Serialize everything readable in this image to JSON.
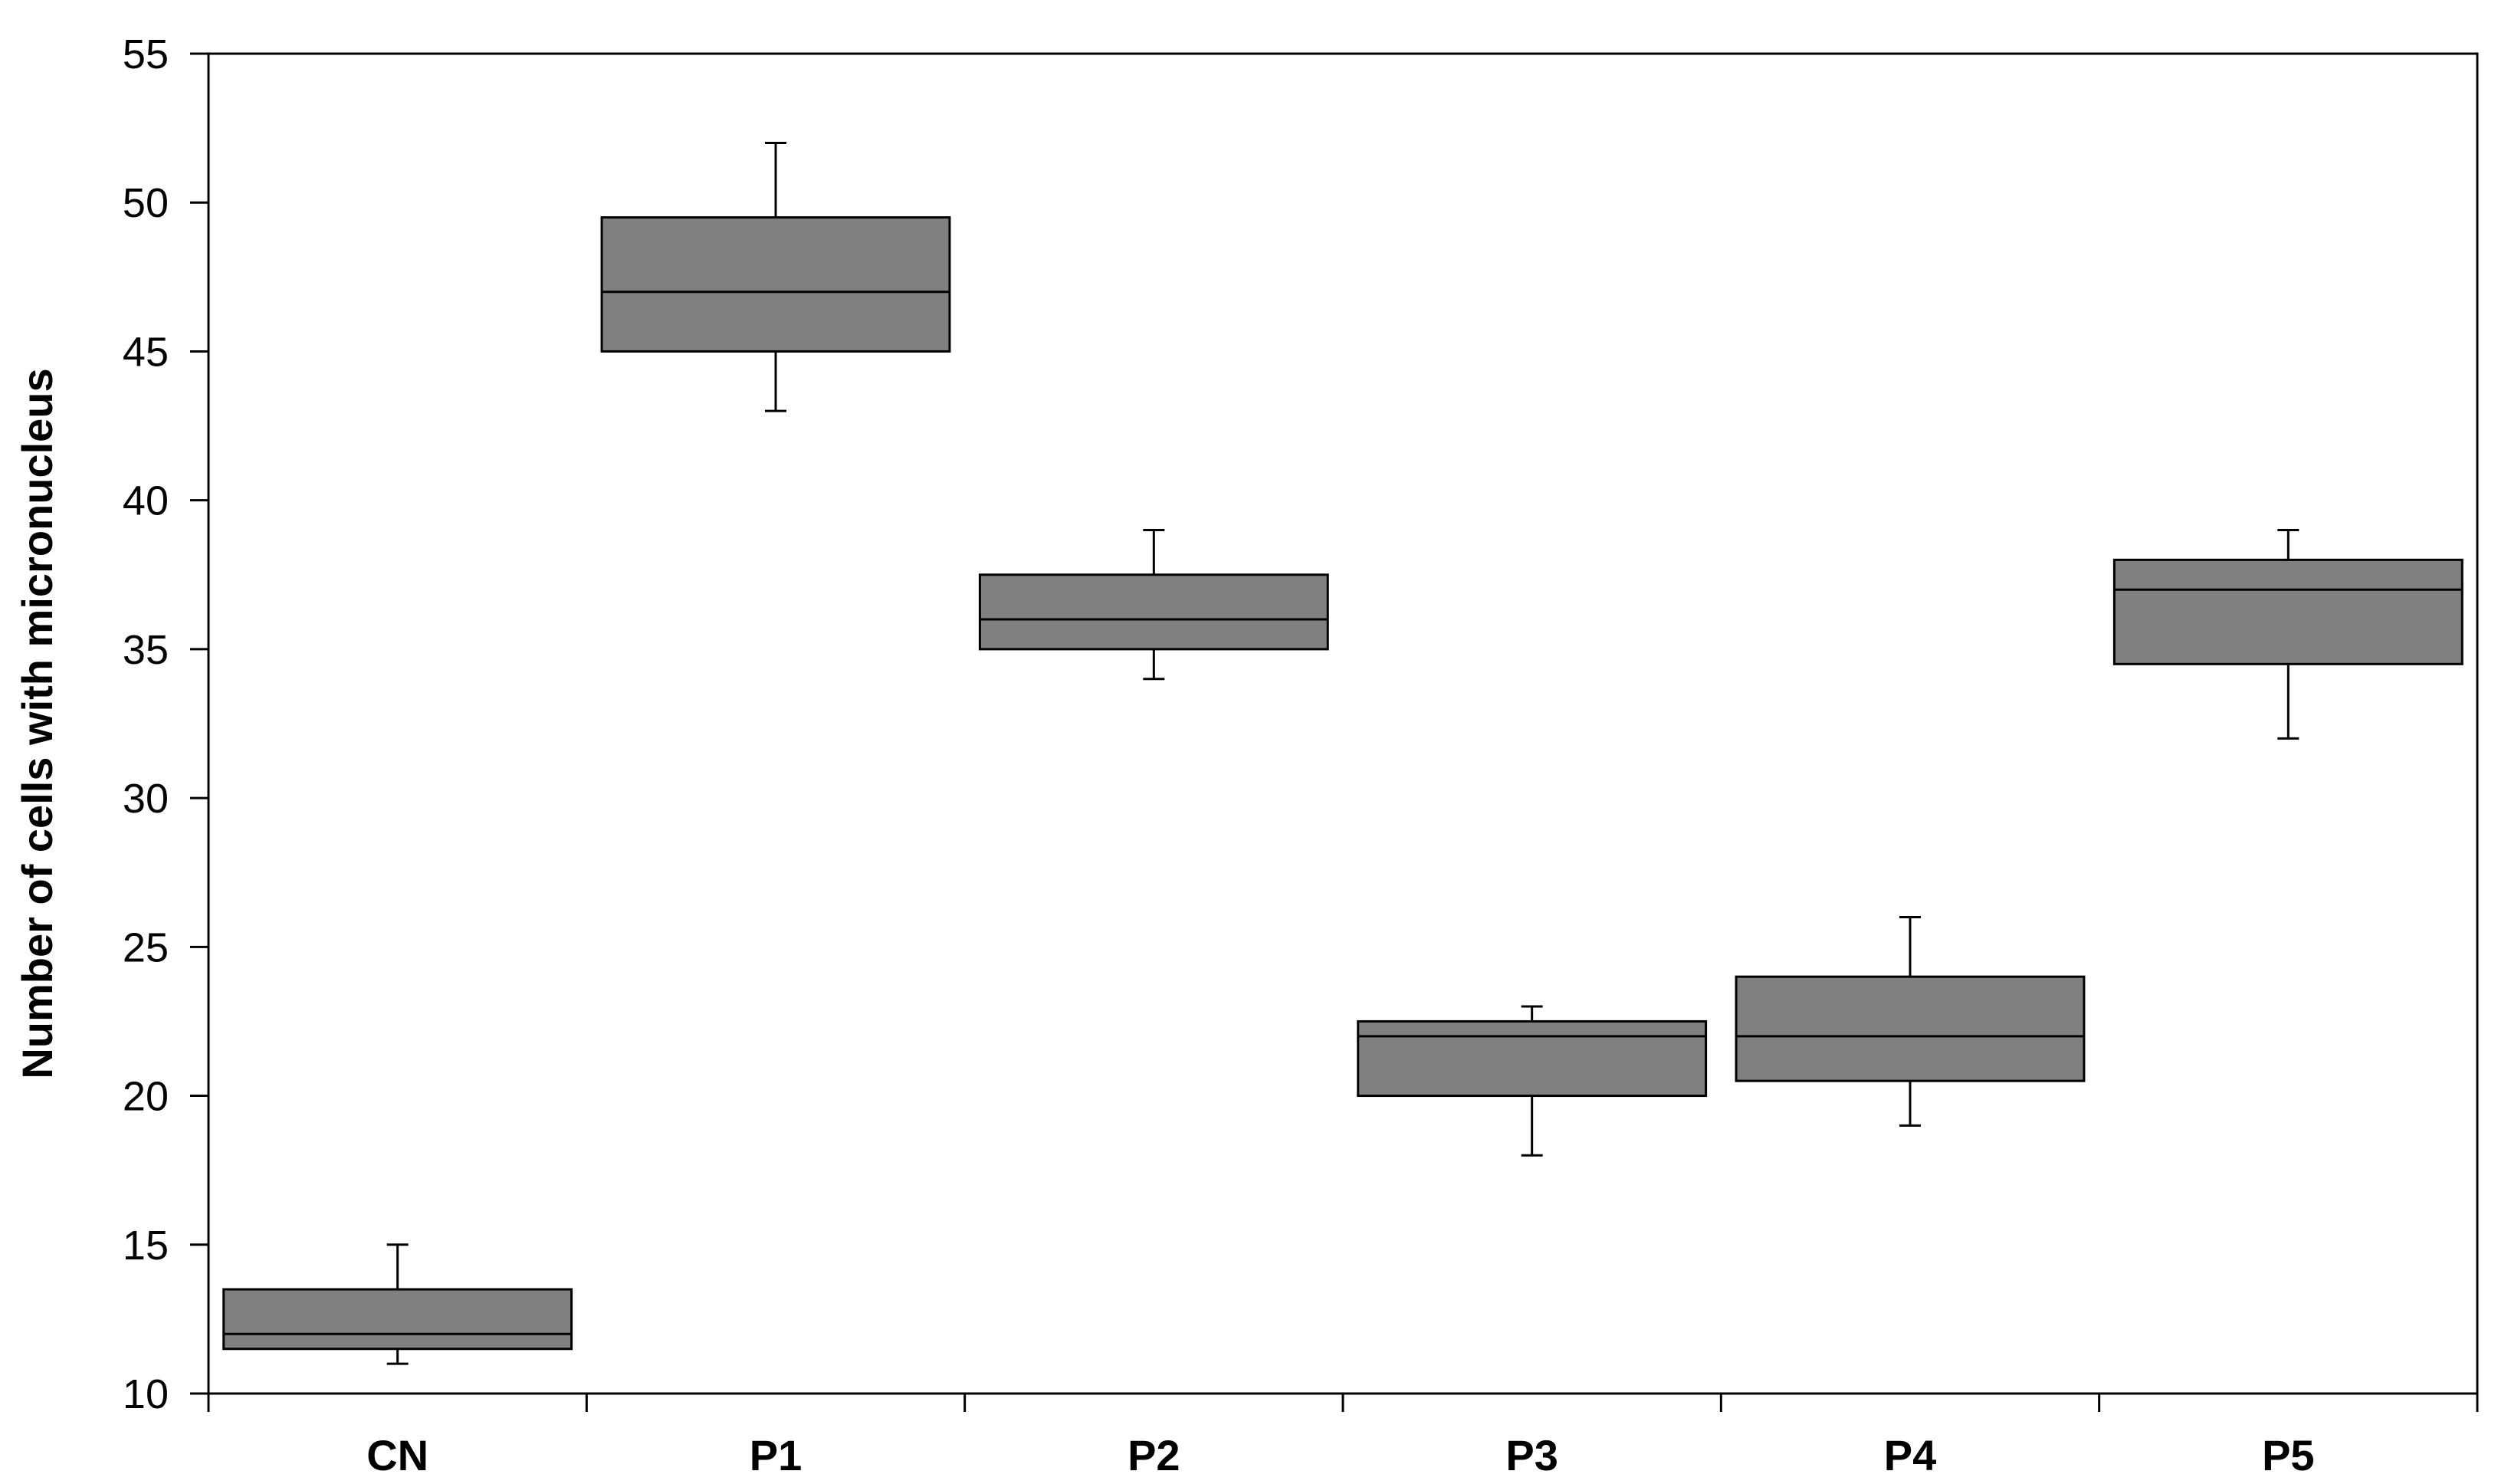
{
  "chart_data": {
    "type": "box",
    "title": "",
    "xlabel": "",
    "ylabel": "Number of cells with micronucleus",
    "ylim": [
      10,
      55
    ],
    "yticks": [
      10,
      15,
      20,
      25,
      30,
      35,
      40,
      45,
      50,
      55
    ],
    "grid": false,
    "categories": [
      "CN",
      "P1",
      "P2",
      "P3",
      "P4",
      "P5"
    ],
    "boxes": [
      {
        "category": "CN",
        "whisker_low": 11,
        "q1": 11.5,
        "median": 12,
        "q3": 13.5,
        "whisker_high": 15
      },
      {
        "category": "P1",
        "whisker_low": 43,
        "q1": 45,
        "median": 47,
        "q3": 49.5,
        "whisker_high": 52
      },
      {
        "category": "P2",
        "whisker_low": 34,
        "q1": 35,
        "median": 36,
        "q3": 37.5,
        "whisker_high": 39
      },
      {
        "category": "P3",
        "whisker_low": 18,
        "q1": 20,
        "median": 22,
        "q3": 22.5,
        "whisker_high": 23
      },
      {
        "category": "P4",
        "whisker_low": 19,
        "q1": 20.5,
        "median": 22,
        "q3": 24,
        "whisker_high": 26
      },
      {
        "category": "P5",
        "whisker_low": 32,
        "q1": 34.5,
        "median": 37,
        "q3": 38,
        "whisker_high": 39
      }
    ],
    "colors": {
      "box_fill": "#808080",
      "stroke": "#000000"
    }
  }
}
